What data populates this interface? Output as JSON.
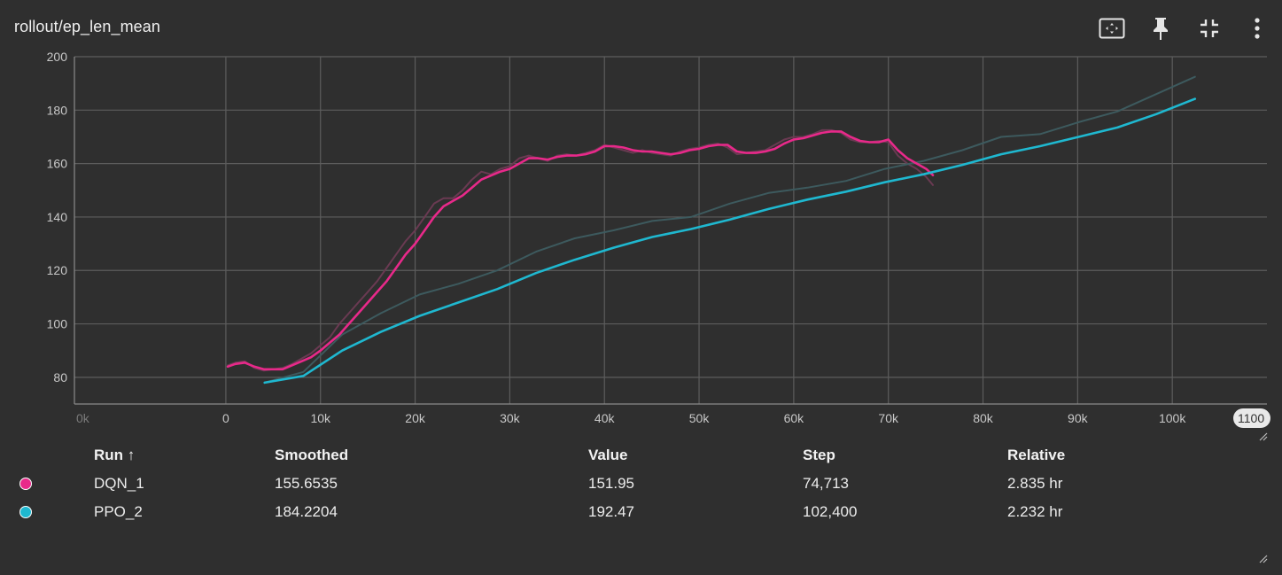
{
  "card": {
    "title": "rollout/ep_len_mean"
  },
  "toolbar": {
    "icons": [
      "fit-domain-icon",
      "pin-icon",
      "collapse-icon",
      "more-vert-icon"
    ]
  },
  "colors": {
    "DQN_1": "#e8298a",
    "PPO_2": "#1fb8d0",
    "raw": "#3d5a5e",
    "grid": "#5d5d5d",
    "axis": "#c8c8c8"
  },
  "chart_data": {
    "type": "line",
    "title": "rollout/ep_len_mean",
    "xlabel": "",
    "ylabel": "",
    "xlim": [
      -16000,
      110000
    ],
    "ylim": [
      70,
      200
    ],
    "x_ticks": [
      0,
      10000,
      20000,
      30000,
      40000,
      50000,
      60000,
      70000,
      80000,
      90000,
      100000
    ],
    "x_tick_labels": [
      "0",
      "10k",
      "20k",
      "30k",
      "40k",
      "50k",
      "60k",
      "70k",
      "80k",
      "90k",
      "100k"
    ],
    "x_edge_labels": [
      "0k",
      "1100"
    ],
    "y_ticks": [
      80,
      100,
      120,
      140,
      160,
      180,
      200
    ],
    "y_tick_labels": [
      "80",
      "100",
      "120",
      "140",
      "160",
      "180",
      "200"
    ],
    "grid": true,
    "series": [
      {
        "name": "DQN_1",
        "kind": "smoothed",
        "x": [
          200,
          1000,
          2000,
          3000,
          4000,
          5000,
          6000,
          7000,
          8000,
          9000,
          10000,
          11000,
          12000,
          13000,
          14000,
          15000,
          16000,
          17000,
          18000,
          19000,
          20000,
          21000,
          22000,
          23000,
          24000,
          25000,
          26000,
          27000,
          28000,
          29000,
          30000,
          31000,
          32000,
          33000,
          34000,
          35000,
          36000,
          37000,
          38000,
          39000,
          40000,
          41000,
          42000,
          43000,
          44000,
          45000,
          46000,
          47000,
          48000,
          49000,
          50000,
          51000,
          52000,
          53000,
          54000,
          55000,
          56000,
          57000,
          58000,
          59000,
          60000,
          61000,
          62000,
          63000,
          64000,
          65000,
          66000,
          67000,
          68000,
          69000,
          70000,
          71000,
          72000,
          73000,
          74000,
          74713
        ],
        "y": [
          84,
          85,
          85.5,
          84,
          83,
          83,
          83,
          84.5,
          86,
          87.5,
          90,
          93,
          96,
          100,
          104,
          108,
          112,
          116,
          121,
          126,
          130,
          135,
          140,
          144,
          146,
          148,
          151,
          154,
          155.5,
          157,
          158,
          160,
          162,
          162,
          161.5,
          162.5,
          163,
          163,
          163.5,
          164.5,
          166.5,
          166.5,
          166,
          165,
          164.5,
          164.5,
          164,
          163.5,
          164,
          165,
          165.5,
          166.5,
          167,
          167,
          164.5,
          164,
          164,
          164.5,
          165.5,
          167.5,
          169,
          169.5,
          170.5,
          171.5,
          172,
          172,
          170,
          168.5,
          168,
          168,
          169,
          165,
          162,
          160,
          158,
          155.6535
        ]
      },
      {
        "name": "DQN_1",
        "kind": "raw",
        "x": [
          200,
          1000,
          2000,
          3000,
          4000,
          5000,
          6000,
          7000,
          8000,
          9000,
          10000,
          11000,
          12000,
          13000,
          14000,
          15000,
          16000,
          17000,
          18000,
          19000,
          20000,
          21000,
          22000,
          23000,
          24000,
          25000,
          26000,
          27000,
          28000,
          29000,
          30000,
          31000,
          32000,
          33000,
          34000,
          35000,
          36000,
          37000,
          38000,
          39000,
          40000,
          41000,
          42000,
          43000,
          44000,
          45000,
          46000,
          47000,
          48000,
          49000,
          50000,
          51000,
          52000,
          53000,
          54000,
          55000,
          56000,
          57000,
          58000,
          59000,
          60000,
          61000,
          62000,
          63000,
          64000,
          65000,
          66000,
          67000,
          68000,
          69000,
          70000,
          71000,
          72000,
          73000,
          74000,
          74713
        ],
        "y": [
          84.5,
          85.5,
          86,
          83.5,
          82.5,
          83,
          83.5,
          85,
          87,
          89,
          92,
          95,
          100,
          104,
          108,
          112,
          116,
          121,
          126,
          131,
          135,
          140,
          145,
          147,
          147,
          150,
          154,
          157,
          156,
          158,
          159,
          162,
          163,
          162,
          161,
          163,
          163.5,
          163,
          164,
          165,
          167,
          166,
          165,
          164,
          165,
          164,
          163.5,
          163,
          164.5,
          165.5,
          166,
          167,
          167.5,
          166,
          163.5,
          164,
          164.5,
          165,
          167,
          169,
          170,
          170,
          171,
          172.5,
          172.5,
          171.5,
          169,
          168,
          168,
          168.5,
          168,
          163,
          160,
          158,
          155,
          151.95
        ]
      },
      {
        "name": "PPO_2",
        "kind": "smoothed",
        "x": [
          4096,
          8192,
          12288,
          16384,
          20480,
          24576,
          28672,
          32768,
          36864,
          40960,
          45056,
          49152,
          53248,
          57344,
          61440,
          65536,
          69632,
          73728,
          77824,
          81920,
          86016,
          90112,
          94208,
          98304,
          102400
        ],
        "y": [
          78,
          80.5,
          90,
          97,
          103,
          108,
          113,
          119,
          124,
          128.5,
          132.5,
          135.5,
          139,
          143,
          146.5,
          149.5,
          153,
          156,
          159.5,
          163.5,
          166.5,
          170,
          173.5,
          178.5,
          184.2204
        ]
      },
      {
        "name": "PPO_2",
        "kind": "raw",
        "x": [
          4096,
          8192,
          12288,
          16384,
          20480,
          24576,
          28672,
          32768,
          36864,
          40960,
          45056,
          49152,
          53248,
          57344,
          61440,
          65536,
          69632,
          73728,
          77824,
          81920,
          86016,
          90112,
          94208,
          98304,
          102400
        ],
        "y": [
          78,
          82,
          96,
          104,
          111,
          115,
          120,
          127,
          132,
          135,
          138.5,
          140,
          145,
          149,
          151,
          153.5,
          158,
          161,
          165,
          170,
          171,
          175.5,
          179.5,
          186,
          192.47
        ]
      }
    ]
  },
  "table": {
    "headers": {
      "run": "Run ↑",
      "smoothed": "Smoothed",
      "value": "Value",
      "step": "Step",
      "relative": "Relative"
    },
    "rows": [
      {
        "run": "DQN_1",
        "color": "#e8298a",
        "smoothed": "155.6535",
        "value": "151.95",
        "step": "74,713",
        "relative": "2.835 hr"
      },
      {
        "run": "PPO_2",
        "color": "#1fb8d0",
        "smoothed": "184.2204",
        "value": "192.47",
        "step": "102,400",
        "relative": "2.232 hr"
      }
    ]
  }
}
